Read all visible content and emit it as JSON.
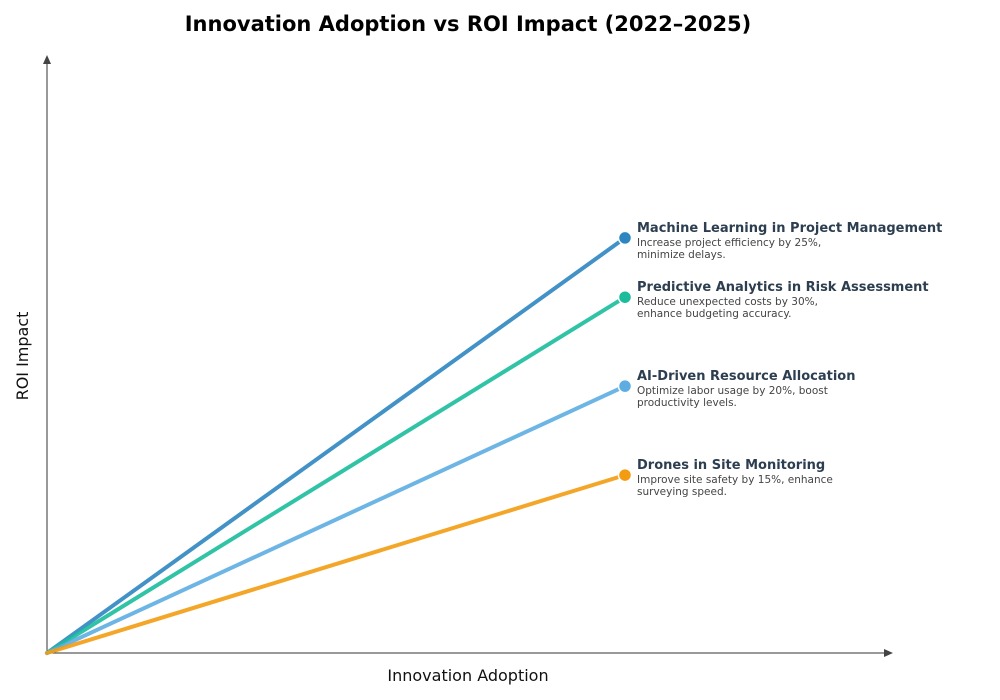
{
  "chart_data": {
    "type": "line",
    "title": "Innovation Adoption vs ROI Impact (2022–2025)",
    "xlabel": "Innovation Adoption",
    "ylabel": "ROI Impact",
    "xlim": [
      0,
      1
    ],
    "ylim": [
      0,
      1
    ],
    "grid": false,
    "legend": "inline-right",
    "series": [
      {
        "name": "Machine Learning in Project Management",
        "desc_line1": "Increase project efficiency by 25%,",
        "desc_line2": "minimize delays.",
        "color": "#2e86c1",
        "x": [
          0,
          0.68
        ],
        "y": [
          0,
          0.7
        ]
      },
      {
        "name": "Predictive Analytics in Risk Assessment",
        "desc_line1": "Reduce unexpected costs by 30%,",
        "desc_line2": "enhance budgeting accuracy.",
        "color": "#1abc9c",
        "x": [
          0,
          0.68
        ],
        "y": [
          0,
          0.6
        ]
      },
      {
        "name": "AI-Driven Resource Allocation",
        "desc_line1": "Optimize labor usage by 20%, boost",
        "desc_line2": "productivity levels.",
        "color": "#5dade2",
        "x": [
          0,
          0.68
        ],
        "y": [
          0,
          0.45
        ]
      },
      {
        "name": "Drones in Site Monitoring",
        "desc_line1": "Improve site safety by 15%, enhance",
        "desc_line2": "surveying speed.",
        "color": "#f39c12",
        "x": [
          0,
          0.68
        ],
        "y": [
          0,
          0.3
        ]
      }
    ]
  }
}
